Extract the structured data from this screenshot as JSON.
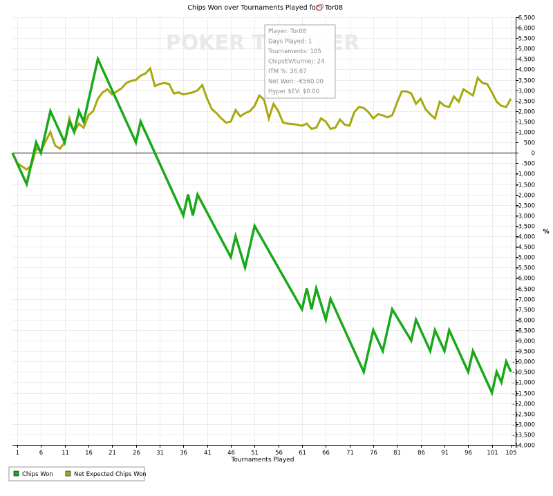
{
  "chart_data": {
    "type": "line",
    "title": "Chips Won over Tournaments Played for",
    "player_name": "Tor08",
    "player_icon": "poker-cards-icon",
    "watermark": "POKER TRACKER",
    "xlabel": "Tournaments Played",
    "ylabel": "%",
    "xlim": [
      0,
      106
    ],
    "ylim": [
      -14000,
      6500
    ],
    "x_ticks": [
      1,
      6,
      11,
      16,
      21,
      26,
      31,
      36,
      41,
      46,
      51,
      56,
      61,
      66,
      71,
      76,
      81,
      86,
      91,
      96,
      101,
      105
    ],
    "y_ticks": [
      6500,
      6000,
      5500,
      5000,
      4500,
      4000,
      3500,
      3000,
      2500,
      2000,
      1500,
      1000,
      500,
      0,
      -500,
      -1000,
      -1500,
      -2000,
      -2500,
      -3000,
      -3500,
      -4000,
      -4500,
      -5000,
      -5500,
      -6000,
      -6500,
      -7000,
      -7500,
      -8000,
      -8500,
      -9000,
      -9500,
      -10000,
      -10500,
      -11000,
      -11500,
      -12000,
      -12500,
      -13000,
      -13500,
      -14000
    ],
    "y_tick_labels": [
      "6,500",
      "6,000",
      "5,500",
      "5,000",
      "4,500",
      "4,000",
      "3,500",
      "3,000",
      "2,500",
      "2,000",
      "1,500",
      "1,000",
      "500",
      "0",
      "-500",
      "-1,000",
      "-1,500",
      "-2,000",
      "-2,500",
      "-3,000",
      "-3,500",
      "-4,000",
      "-4,500",
      "-5,000",
      "-5,500",
      "-6,000",
      "-6,500",
      "-7,000",
      "-7,500",
      "-8,000",
      "-8,500",
      "-9,000",
      "-9,500",
      "-10,000",
      "-10,500",
      "-11,000",
      "-11,500",
      "-12,000",
      "-12,500",
      "-13,000",
      "-13,500",
      "-14,000"
    ],
    "grid": true,
    "legend_position": "bottom-left",
    "series": [
      {
        "name": "Chips Won",
        "color": "#18a818",
        "x": [
          0,
          3,
          5,
          6,
          8,
          11,
          12,
          13,
          14,
          15,
          18,
          26,
          27,
          36,
          37,
          38,
          39,
          46,
          47,
          49,
          51,
          61,
          62,
          63,
          64,
          66,
          67,
          74,
          76,
          78,
          80,
          84,
          85,
          88,
          89,
          91,
          92,
          96,
          97,
          101,
          102,
          103,
          104,
          105
        ],
        "y": [
          0,
          -1500,
          500,
          0,
          2000,
          500,
          1500,
          1000,
          2000,
          1500,
          4500,
          500,
          1500,
          -3000,
          -2000,
          -3000,
          -2000,
          -5000,
          -4000,
          -5500,
          -3500,
          -7500,
          -6500,
          -7500,
          -6500,
          -8000,
          -7000,
          -10500,
          -8500,
          -9500,
          -7500,
          -9000,
          -8000,
          -9500,
          -8500,
          -9500,
          -8500,
          -10500,
          -9500,
          -11500,
          -10500,
          -11000,
          -10000,
          -10500
        ]
      },
      {
        "name": "Net Expected Chips Won",
        "color": "#a8a80e",
        "x": [
          0,
          1,
          3,
          4,
          5,
          6,
          8,
          9,
          10,
          11,
          12,
          13,
          14,
          15,
          16,
          17,
          18,
          19,
          20,
          21,
          22,
          23,
          24,
          25,
          26,
          27,
          28,
          29,
          30,
          31,
          32,
          33,
          34,
          35,
          36,
          37,
          38,
          39,
          40,
          41,
          42,
          43,
          44,
          45,
          46,
          47,
          48,
          49,
          50,
          51,
          52,
          53,
          54,
          55,
          56,
          57,
          58,
          59,
          60,
          61,
          62,
          63,
          64,
          65,
          66,
          67,
          68,
          69,
          70,
          71,
          72,
          73,
          74,
          75,
          76,
          77,
          78,
          79,
          80,
          81,
          82,
          83,
          84,
          85,
          86,
          87,
          88,
          89,
          90,
          91,
          92,
          93,
          94,
          95,
          96,
          97,
          98,
          99,
          100,
          101,
          102,
          103,
          104,
          105
        ],
        "y": [
          0,
          -500,
          -800,
          -600,
          200,
          100,
          1000,
          350,
          200,
          500,
          1650,
          1000,
          1400,
          1200,
          1800,
          2000,
          2600,
          2900,
          3050,
          2800,
          2950,
          3100,
          3350,
          3450,
          3500,
          3700,
          3800,
          4050,
          3200,
          3300,
          3350,
          3300,
          2850,
          2900,
          2800,
          2850,
          2900,
          3000,
          3250,
          2600,
          2100,
          1900,
          1650,
          1450,
          1500,
          2050,
          1750,
          1900,
          2000,
          2250,
          2750,
          2550,
          1650,
          2350,
          2000,
          1450,
          1400,
          1380,
          1350,
          1300,
          1400,
          1150,
          1200,
          1650,
          1500,
          1150,
          1200,
          1600,
          1350,
          1300,
          1950,
          2200,
          2150,
          1950,
          1650,
          1850,
          1800,
          1700,
          1800,
          2400,
          2950,
          2950,
          2850,
          2350,
          2600,
          2100,
          1850,
          1650,
          2450,
          2250,
          2200,
          2700,
          2450,
          3050,
          2900,
          2750,
          3600,
          3350,
          3300,
          2900,
          2450,
          2250,
          2200,
          2600
        ]
      }
    ]
  },
  "tooltip": {
    "lines": [
      "Player: Tor08",
      "Days Played: 1",
      "Tournaments: 105",
      "ChipsEV/turniej: 24",
      "ITM %: 26.67",
      "Net Won: -€560.00",
      "Hyper $EV: $0.00"
    ]
  }
}
